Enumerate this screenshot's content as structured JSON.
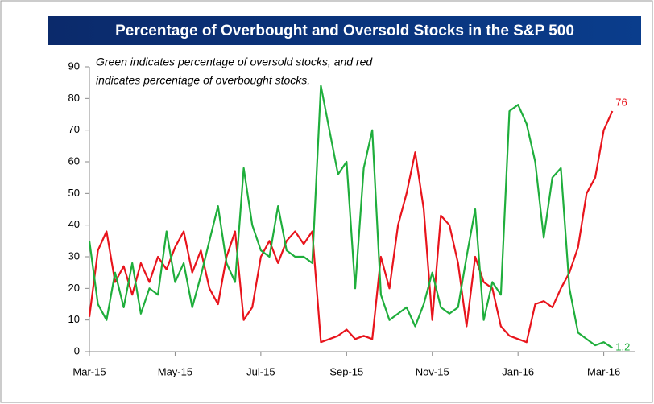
{
  "chart_data": {
    "type": "line",
    "title": "Percentage of Overbought and Oversold Stocks in the S&P 500",
    "annotation": [
      "Green indicates percentage of oversold stocks, and red",
      "indicates percentage of overbought stocks."
    ],
    "categories": [
      "Mar-15",
      null,
      null,
      null,
      null,
      null,
      null,
      null,
      null,
      null,
      "May-15",
      null,
      null,
      null,
      null,
      null,
      null,
      null,
      null,
      null,
      "Jul-15",
      null,
      null,
      null,
      null,
      null,
      null,
      null,
      null,
      null,
      "Sep-15",
      null,
      null,
      null,
      null,
      null,
      null,
      null,
      null,
      null,
      "Nov-15",
      null,
      null,
      null,
      null,
      null,
      null,
      null,
      null,
      null,
      "Jan-16",
      null,
      null,
      null,
      null,
      null,
      null,
      null,
      null,
      null,
      "Mar-16",
      null
    ],
    "series": [
      {
        "name": "Overbought",
        "color": "#e8141c",
        "values": [
          11,
          32,
          38,
          22,
          27,
          18,
          28,
          22,
          30,
          26,
          33,
          38,
          25,
          32,
          20,
          15,
          30,
          38,
          10,
          14,
          30,
          35,
          28,
          35,
          38,
          34,
          38,
          3,
          4,
          5,
          7,
          4,
          5,
          4,
          30,
          20,
          40,
          50,
          63,
          45,
          10,
          43,
          40,
          28,
          8,
          30,
          22,
          20,
          8,
          5,
          4,
          3,
          15,
          16,
          14,
          20,
          25,
          33,
          50,
          55,
          70,
          76
        ]
      },
      {
        "name": "Oversold",
        "color": "#1fae3c",
        "values": [
          35,
          15,
          10,
          25,
          14,
          28,
          12,
          20,
          18,
          38,
          22,
          28,
          14,
          24,
          35,
          46,
          28,
          22,
          58,
          40,
          32,
          30,
          46,
          32,
          30,
          30,
          28,
          84,
          70,
          56,
          60,
          20,
          58,
          70,
          18,
          10,
          12,
          14,
          8,
          15,
          25,
          14,
          12,
          14,
          30,
          45,
          10,
          22,
          18,
          76,
          78,
          72,
          60,
          36,
          55,
          58,
          20,
          6,
          4,
          2,
          3,
          1.2
        ]
      }
    ],
    "ylim": [
      0,
      90
    ],
    "yticks": [
      0,
      10,
      20,
      30,
      40,
      50,
      60,
      70,
      80,
      90
    ],
    "grid": false
  }
}
